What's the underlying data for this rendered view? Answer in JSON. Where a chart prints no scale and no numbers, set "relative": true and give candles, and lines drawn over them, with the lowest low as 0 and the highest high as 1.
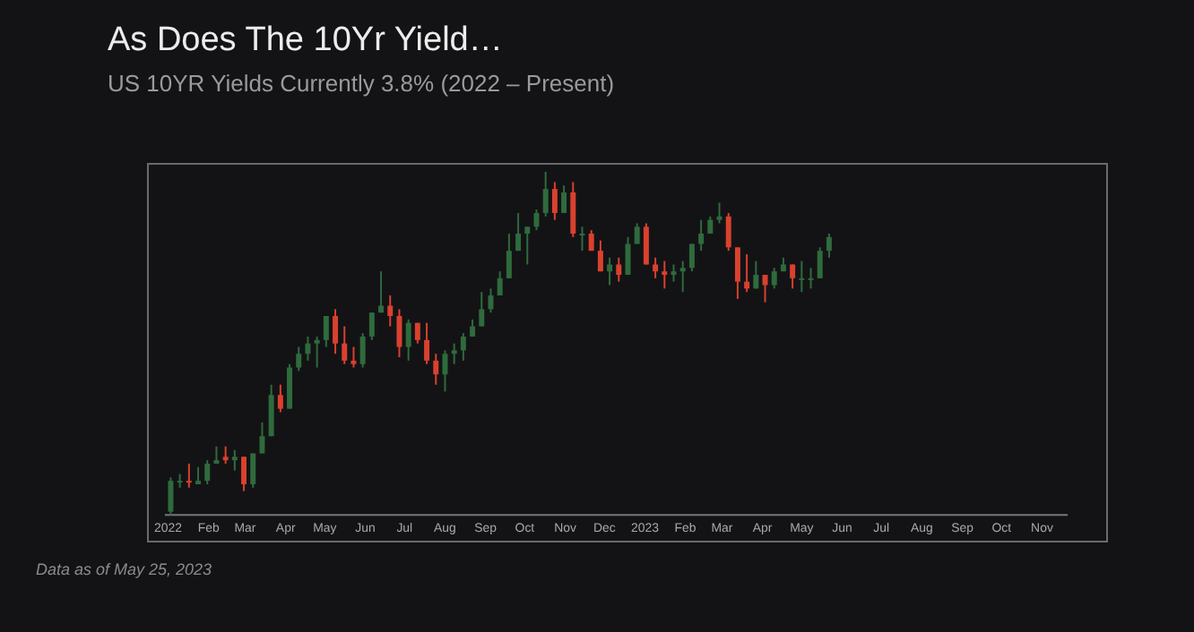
{
  "chart_data": {
    "type": "candlestick",
    "title": "As Does The 10Yr Yield…",
    "subtitle": "US 10YR Yields Currently 3.8% (2022 – Present)",
    "annotations": [
      "Data as of May 25, 2023"
    ],
    "relative": true,
    "x": [
      "2022-01-03",
      "2022-01-10",
      "2022-01-17",
      "2022-01-24",
      "2022-01-31",
      "2022-02-07",
      "2022-02-14",
      "2022-02-21",
      "2022-02-28",
      "2022-03-07",
      "2022-03-14",
      "2022-03-21",
      "2022-03-28",
      "2022-04-04",
      "2022-04-11",
      "2022-04-18",
      "2022-04-25",
      "2022-05-02",
      "2022-05-09",
      "2022-05-16",
      "2022-05-23",
      "2022-05-30",
      "2022-06-06",
      "2022-06-13",
      "2022-06-20",
      "2022-06-27",
      "2022-07-04",
      "2022-07-11",
      "2022-07-18",
      "2022-07-25",
      "2022-08-01",
      "2022-08-08",
      "2022-08-15",
      "2022-08-22",
      "2022-08-29",
      "2022-09-05",
      "2022-09-12",
      "2022-09-19",
      "2022-09-26",
      "2022-10-03",
      "2022-10-10",
      "2022-10-17",
      "2022-10-24",
      "2022-10-31",
      "2022-11-07",
      "2022-11-14",
      "2022-11-21",
      "2022-11-28",
      "2022-12-05",
      "2022-12-12",
      "2022-12-19",
      "2022-12-26",
      "2023-01-02",
      "2023-01-09",
      "2023-01-16",
      "2023-01-23",
      "2023-01-30",
      "2023-02-06",
      "2023-02-13",
      "2023-02-20",
      "2023-02-27",
      "2023-03-06",
      "2023-03-13",
      "2023-03-20",
      "2023-03-27",
      "2023-04-03",
      "2023-04-10",
      "2023-04-17",
      "2023-04-24",
      "2023-05-01",
      "2023-05-08",
      "2023-05-15",
      "2023-05-22"
    ],
    "ohlc": [
      [
        0.01,
        0.11,
        0,
        0.1
      ],
      [
        0.1,
        0.12,
        0.08,
        0.1
      ],
      [
        0.1,
        0.15,
        0.08,
        0.1
      ],
      [
        0.09,
        0.14,
        0.09,
        0.1
      ],
      [
        0.1,
        0.16,
        0.09,
        0.15
      ],
      [
        0.15,
        0.2,
        0.15,
        0.16
      ],
      [
        0.17,
        0.2,
        0.15,
        0.16
      ],
      [
        0.16,
        0.19,
        0.13,
        0.17
      ],
      [
        0.17,
        0.17,
        0.07,
        0.09
      ],
      [
        0.09,
        0.18,
        0.08,
        0.18
      ],
      [
        0.18,
        0.27,
        0.18,
        0.23
      ],
      [
        0.23,
        0.38,
        0.23,
        0.35
      ],
      [
        0.35,
        0.38,
        0.3,
        0.31
      ],
      [
        0.31,
        0.44,
        0.31,
        0.43
      ],
      [
        0.43,
        0.49,
        0.42,
        0.47
      ],
      [
        0.47,
        0.52,
        0.45,
        0.5
      ],
      [
        0.5,
        0.52,
        0.43,
        0.51
      ],
      [
        0.51,
        0.58,
        0.49,
        0.58
      ],
      [
        0.58,
        0.6,
        0.47,
        0.5
      ],
      [
        0.5,
        0.55,
        0.44,
        0.45
      ],
      [
        0.45,
        0.49,
        0.43,
        0.44
      ],
      [
        0.44,
        0.53,
        0.43,
        0.52
      ],
      [
        0.52,
        0.59,
        0.51,
        0.59
      ],
      [
        0.59,
        0.71,
        0.59,
        0.61
      ],
      [
        0.61,
        0.64,
        0.55,
        0.58
      ],
      [
        0.58,
        0.6,
        0.46,
        0.49
      ],
      [
        0.49,
        0.57,
        0.45,
        0.56
      ],
      [
        0.56,
        0.56,
        0.5,
        0.51
      ],
      [
        0.51,
        0.56,
        0.44,
        0.45
      ],
      [
        0.45,
        0.47,
        0.38,
        0.41
      ],
      [
        0.41,
        0.48,
        0.36,
        0.47
      ],
      [
        0.47,
        0.5,
        0.44,
        0.48
      ],
      [
        0.48,
        0.53,
        0.45,
        0.52
      ],
      [
        0.52,
        0.57,
        0.52,
        0.55
      ],
      [
        0.55,
        0.65,
        0.55,
        0.6
      ],
      [
        0.6,
        0.66,
        0.59,
        0.64
      ],
      [
        0.64,
        0.71,
        0.64,
        0.69
      ],
      [
        0.69,
        0.82,
        0.69,
        0.77
      ],
      [
        0.77,
        0.88,
        0.77,
        0.82
      ],
      [
        0.82,
        0.84,
        0.73,
        0.84
      ],
      [
        0.84,
        0.89,
        0.83,
        0.88
      ],
      [
        0.88,
        1.0,
        0.87,
        0.95
      ],
      [
        0.95,
        0.97,
        0.86,
        0.88
      ],
      [
        0.88,
        0.96,
        0.88,
        0.94
      ],
      [
        0.94,
        0.97,
        0.81,
        0.82
      ],
      [
        0.82,
        0.84,
        0.77,
        0.82
      ],
      [
        0.82,
        0.83,
        0.77,
        0.77
      ],
      [
        0.77,
        0.8,
        0.71,
        0.71
      ],
      [
        0.71,
        0.75,
        0.67,
        0.73
      ],
      [
        0.73,
        0.75,
        0.68,
        0.7
      ],
      [
        0.7,
        0.81,
        0.7,
        0.79
      ],
      [
        0.79,
        0.85,
        0.79,
        0.84
      ],
      [
        0.84,
        0.85,
        0.73,
        0.73
      ],
      [
        0.73,
        0.75,
        0.69,
        0.71
      ],
      [
        0.71,
        0.74,
        0.66,
        0.7
      ],
      [
        0.7,
        0.73,
        0.68,
        0.71
      ],
      [
        0.71,
        0.74,
        0.65,
        0.72
      ],
      [
        0.72,
        0.79,
        0.71,
        0.79
      ],
      [
        0.79,
        0.86,
        0.77,
        0.82
      ],
      [
        0.82,
        0.87,
        0.82,
        0.86
      ],
      [
        0.86,
        0.91,
        0.85,
        0.87
      ],
      [
        0.87,
        0.88,
        0.77,
        0.78
      ],
      [
        0.78,
        0.78,
        0.63,
        0.68
      ],
      [
        0.68,
        0.76,
        0.65,
        0.66
      ],
      [
        0.66,
        0.74,
        0.66,
        0.7
      ],
      [
        0.7,
        0.7,
        0.62,
        0.67
      ],
      [
        0.67,
        0.72,
        0.66,
        0.71
      ],
      [
        0.71,
        0.75,
        0.71,
        0.73
      ],
      [
        0.73,
        0.73,
        0.66,
        0.69
      ],
      [
        0.69,
        0.74,
        0.65,
        0.69
      ],
      [
        0.69,
        0.72,
        0.66,
        0.69
      ],
      [
        0.69,
        0.78,
        0.69,
        0.77
      ],
      [
        0.77,
        0.82,
        0.75,
        0.81
      ]
    ],
    "colors": [
      "#2f6b3c",
      "#2f6b3c",
      "#d9412e",
      "#2f6b3c",
      "#2f6b3c",
      "#2f6b3c",
      "#d9412e",
      "#2f6b3c",
      "#d9412e",
      "#2f6b3c",
      "#2f6b3c",
      "#2f6b3c",
      "#d9412e",
      "#2f6b3c",
      "#2f6b3c",
      "#2f6b3c",
      "#2f6b3c",
      "#2f6b3c",
      "#d9412e",
      "#d9412e",
      "#d9412e",
      "#2f6b3c",
      "#2f6b3c",
      "#2f6b3c",
      "#d9412e",
      "#d9412e",
      "#2f6b3c",
      "#d9412e",
      "#d9412e",
      "#d9412e",
      "#2f6b3c",
      "#2f6b3c",
      "#2f6b3c",
      "#2f6b3c",
      "#2f6b3c",
      "#2f6b3c",
      "#2f6b3c",
      "#2f6b3c",
      "#2f6b3c",
      "#2f6b3c",
      "#2f6b3c",
      "#2f6b3c",
      "#d9412e",
      "#2f6b3c",
      "#d9412e",
      "#2f6b3c",
      "#d9412e",
      "#d9412e",
      "#2f6b3c",
      "#d9412e",
      "#2f6b3c",
      "#2f6b3c",
      "#d9412e",
      "#d9412e",
      "#d9412e",
      "#2f6b3c",
      "#2f6b3c",
      "#2f6b3c",
      "#2f6b3c",
      "#2f6b3c",
      "#2f6b3c",
      "#d9412e",
      "#d9412e",
      "#d9412e",
      "#2f6b3c",
      "#d9412e",
      "#2f6b3c",
      "#2f6b3c",
      "#d9412e",
      "#2f6b3c",
      "#2f6b3c",
      "#2f6b3c",
      "#2f6b3c"
    ],
    "xlim": [
      "2021-12-30",
      "2023-11-20"
    ],
    "xticks": [
      {
        "value": "2022-01-01",
        "label": "2022"
      },
      {
        "value": "2022-02-01",
        "label": "Feb"
      },
      {
        "value": "2022-03-01",
        "label": "Mar"
      },
      {
        "value": "2022-04-01",
        "label": "Apr"
      },
      {
        "value": "2022-05-01",
        "label": "May"
      },
      {
        "value": "2022-06-01",
        "label": "Jun"
      },
      {
        "value": "2022-07-01",
        "label": "Jul"
      },
      {
        "value": "2022-08-01",
        "label": "Aug"
      },
      {
        "value": "2022-09-01",
        "label": "Sep"
      },
      {
        "value": "2022-10-01",
        "label": "Oct"
      },
      {
        "value": "2022-11-01",
        "label": "Nov"
      },
      {
        "value": "2022-12-01",
        "label": "Dec"
      },
      {
        "value": "2023-01-01",
        "label": "2023"
      },
      {
        "value": "2023-02-01",
        "label": "Feb"
      },
      {
        "value": "2023-03-01",
        "label": "Mar"
      },
      {
        "value": "2023-04-01",
        "label": "Apr"
      },
      {
        "value": "2023-05-01",
        "label": "May"
      },
      {
        "value": "2023-06-01",
        "label": "Jun"
      },
      {
        "value": "2023-07-01",
        "label": "Jul"
      },
      {
        "value": "2023-08-01",
        "label": "Aug"
      },
      {
        "value": "2023-09-01",
        "label": "Sep"
      },
      {
        "value": "2023-10-01",
        "label": "Oct"
      },
      {
        "value": "2023-11-01",
        "label": "Nov"
      }
    ]
  }
}
